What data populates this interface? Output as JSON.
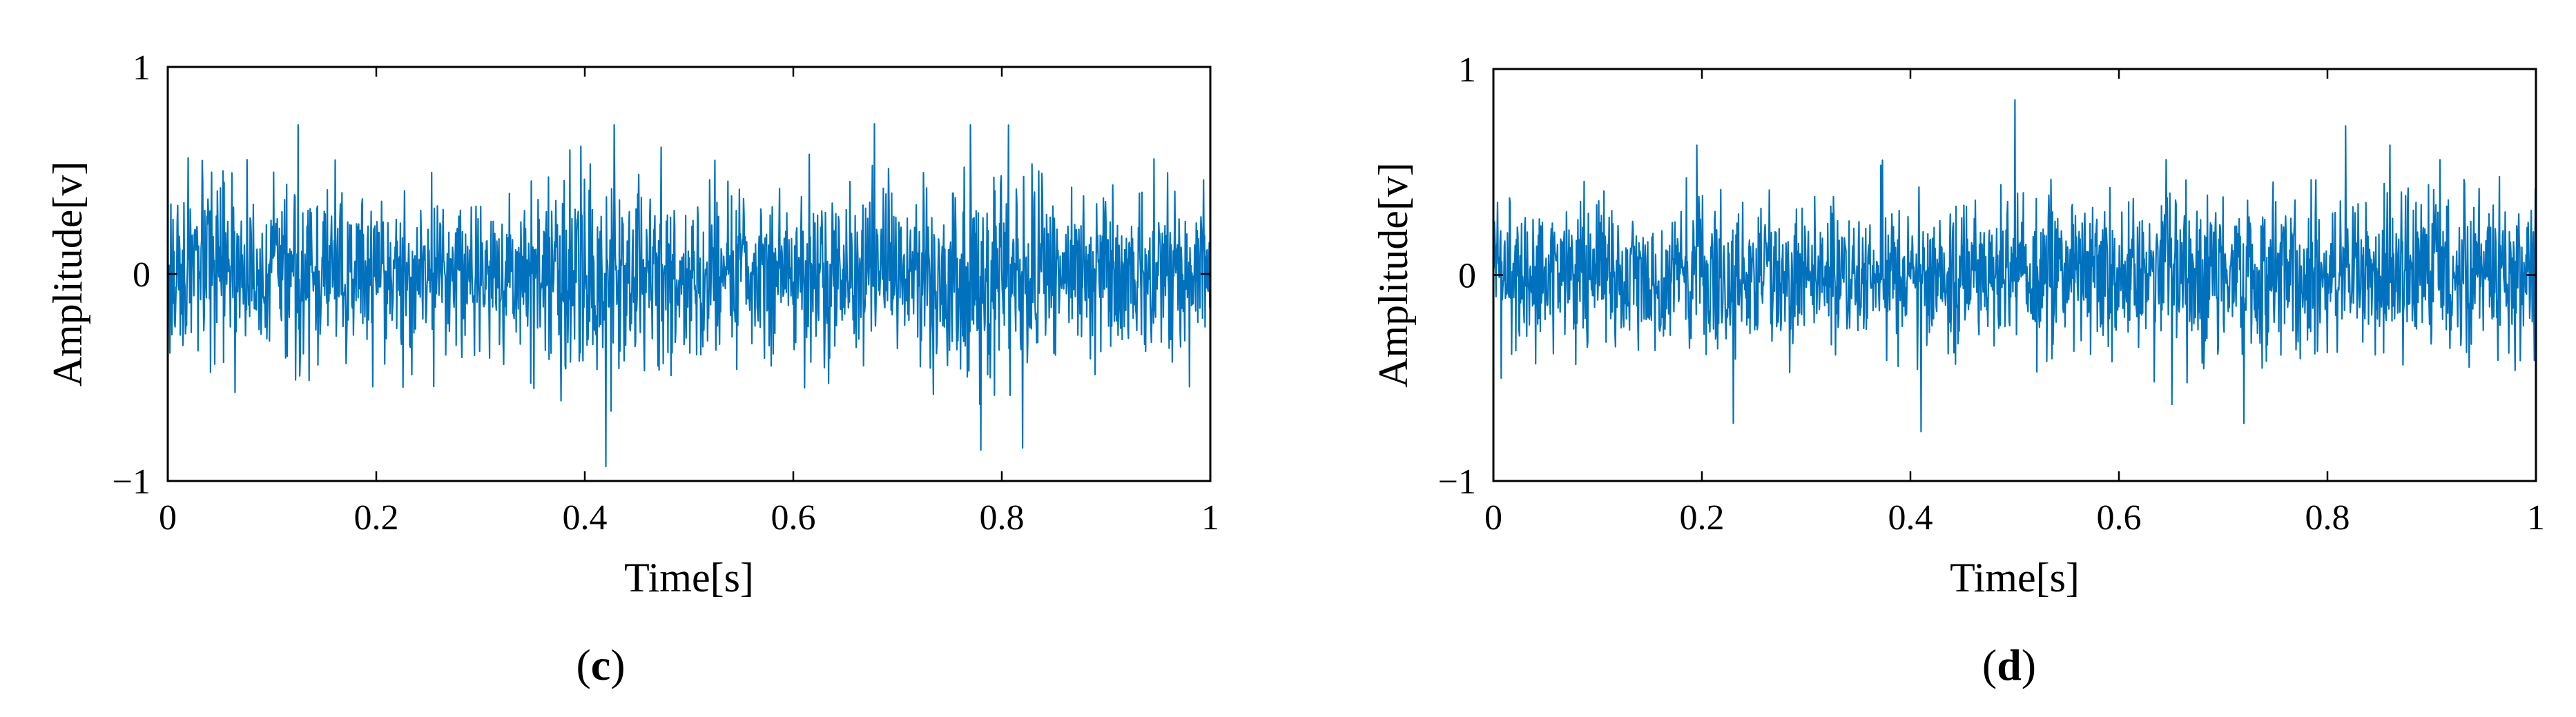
{
  "figure": {
    "panels": [
      "(c)",
      "(d)"
    ]
  },
  "chart_data": [
    {
      "type": "line",
      "panel_label": "(c)",
      "xlabel": "Time[s]",
      "ylabel": "Amplitude[v]",
      "xlim": [
        0,
        1
      ],
      "ylim": [
        -1,
        1
      ],
      "xticks": [
        0,
        0.2,
        0.4,
        0.6,
        0.8,
        1
      ],
      "xtick_labels": [
        "0",
        "0.2",
        "0.4",
        "0.6",
        "0.8",
        "1"
      ],
      "yticks": [
        -1,
        0,
        1
      ],
      "ytick_labels": [
        "−1",
        "0",
        "1"
      ],
      "grid": false,
      "color": "#0072bd",
      "signal": {
        "description_points": 2000,
        "envelope": [
          {
            "t": 0.0,
            "amp": 0.25
          },
          {
            "t": 0.1,
            "amp": 0.24
          },
          {
            "t": 0.2,
            "amp": 0.22
          },
          {
            "t": 0.3,
            "amp": 0.2
          },
          {
            "t": 0.42,
            "amp": 0.32
          },
          {
            "t": 0.5,
            "amp": 0.22
          },
          {
            "t": 0.6,
            "amp": 0.2
          },
          {
            "t": 0.7,
            "amp": 0.24
          },
          {
            "t": 0.78,
            "amp": 0.3
          },
          {
            "t": 0.9,
            "amp": 0.22
          },
          {
            "t": 1.0,
            "amp": 0.2
          }
        ],
        "peaks": [
          {
            "t": 0.125,
            "v": 0.72
          },
          {
            "t": 0.42,
            "v": -0.93
          },
          {
            "t": 0.428,
            "v": 0.72
          },
          {
            "t": 0.77,
            "v": 0.72
          },
          {
            "t": 0.78,
            "v": -0.85
          },
          {
            "t": 0.82,
            "v": -0.84
          }
        ],
        "seed": 17
      }
    },
    {
      "type": "line",
      "panel_label": "(d)",
      "xlabel": "Time[s]",
      "ylabel": "Amplitude[v]",
      "xlim": [
        0,
        1
      ],
      "ylim": [
        -1,
        1
      ],
      "xticks": [
        0,
        0.2,
        0.4,
        0.6,
        0.8,
        1
      ],
      "xtick_labels": [
        "0",
        "0.2",
        "0.4",
        "0.6",
        "0.8",
        "1"
      ],
      "yticks": [
        -1,
        0,
        1
      ],
      "ytick_labels": [
        "−1",
        "0",
        "1"
      ],
      "grid": false,
      "color": "#0072bd",
      "signal": {
        "description_points": 2000,
        "envelope": [
          {
            "t": 0.0,
            "amp": 0.22
          },
          {
            "t": 0.25,
            "amp": 0.21
          },
          {
            "t": 0.5,
            "amp": 0.22
          },
          {
            "t": 0.75,
            "amp": 0.23
          },
          {
            "t": 1.0,
            "amp": 0.22
          }
        ],
        "peaks": [
          {
            "t": 0.5,
            "v": 0.85
          },
          {
            "t": 0.41,
            "v": -0.76
          },
          {
            "t": 0.86,
            "v": 0.63
          },
          {
            "t": 0.23,
            "v": -0.72
          },
          {
            "t": 0.72,
            "v": -0.72
          }
        ],
        "seed": 42
      }
    }
  ]
}
